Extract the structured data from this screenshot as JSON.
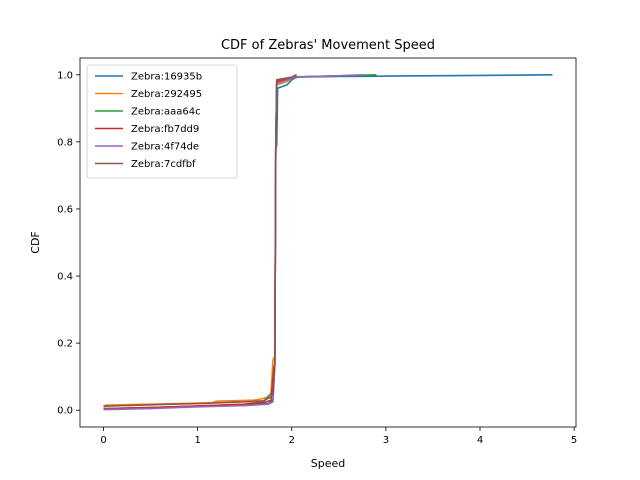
{
  "chart_data": {
    "type": "line",
    "title": "CDF of Zebras' Movement Speed",
    "xlabel": "Speed",
    "ylabel": "CDF",
    "xlim": [
      -0.25,
      5.02
    ],
    "ylim": [
      -0.05,
      1.05
    ],
    "xticks": [
      0,
      1,
      2,
      3,
      4,
      5
    ],
    "yticks": [
      0.0,
      0.2,
      0.4,
      0.6,
      0.8,
      1.0
    ],
    "xtick_labels": [
      "0",
      "1",
      "2",
      "3",
      "4",
      "5"
    ],
    "ytick_labels": [
      "0.0",
      "0.2",
      "0.4",
      "0.6",
      "0.8",
      "1.0"
    ],
    "grid": false,
    "legend_position": "top-left",
    "series": [
      {
        "name": "Zebra:16935b",
        "color": "#1f77b4",
        "x": [
          0,
          0.5,
          1.0,
          1.5,
          1.75,
          1.8,
          1.82,
          1.83,
          1.84,
          1.85,
          1.9,
          1.95,
          2.0,
          2.05,
          2.5,
          3.0,
          4.0,
          4.77
        ],
        "y": [
          0.005,
          0.008,
          0.012,
          0.016,
          0.02,
          0.03,
          0.14,
          0.78,
          0.79,
          0.96,
          0.965,
          0.97,
          0.985,
          0.993,
          0.995,
          0.996,
          0.998,
          1.0
        ]
      },
      {
        "name": "Zebra:292495",
        "color": "#ff7f0e",
        "x": [
          0,
          0.02,
          0.5,
          1.15,
          1.2,
          1.6,
          1.7,
          1.75,
          1.78,
          1.8,
          1.81,
          1.82,
          1.83,
          1.84,
          1.9,
          1.95,
          2.0,
          2.05
        ],
        "y": [
          0.01,
          0.015,
          0.018,
          0.022,
          0.027,
          0.03,
          0.035,
          0.04,
          0.05,
          0.15,
          0.155,
          0.16,
          0.78,
          0.97,
          0.975,
          0.98,
          0.99,
          1.0
        ]
      },
      {
        "name": "Zebra:aaa64c",
        "color": "#2ca02c",
        "x": [
          0,
          0.5,
          1.0,
          1.5,
          1.7,
          1.78,
          1.8,
          1.82,
          1.83,
          1.84,
          1.9,
          2.0,
          2.1,
          2.5,
          2.9
        ],
        "y": [
          0.005,
          0.008,
          0.012,
          0.018,
          0.025,
          0.05,
          0.055,
          0.14,
          0.78,
          0.975,
          0.98,
          0.99,
          0.994,
          0.997,
          1.0
        ]
      },
      {
        "name": "Zebra:fb7dd9",
        "color": "#d62728",
        "x": [
          0,
          0.5,
          1.0,
          1.5,
          1.7,
          1.78,
          1.81,
          1.82,
          1.83,
          1.84,
          1.9,
          2.0,
          2.05
        ],
        "y": [
          0.004,
          0.008,
          0.013,
          0.018,
          0.022,
          0.03,
          0.13,
          0.135,
          0.77,
          0.98,
          0.985,
          0.99,
          1.0
        ]
      },
      {
        "name": "Zebra:4f74de",
        "color": "#9467bd",
        "x": [
          0,
          0.5,
          1.0,
          1.5,
          1.75,
          1.8,
          1.82,
          1.83,
          1.84,
          1.9,
          2.0,
          2.05,
          2.5,
          2.75
        ],
        "y": [
          0.002,
          0.005,
          0.01,
          0.014,
          0.018,
          0.025,
          0.13,
          0.78,
          0.975,
          0.98,
          0.99,
          0.994,
          0.997,
          1.0
        ]
      },
      {
        "name": "Zebra:7cdfbf",
        "color": "#8c564b",
        "x": [
          0,
          0.5,
          1.0,
          1.5,
          1.7,
          1.78,
          1.8,
          1.82,
          1.83,
          1.84,
          1.9,
          2.0,
          2.05
        ],
        "y": [
          0.012,
          0.016,
          0.02,
          0.025,
          0.028,
          0.04,
          0.05,
          0.14,
          0.785,
          0.985,
          0.988,
          0.993,
          1.0
        ]
      }
    ]
  }
}
